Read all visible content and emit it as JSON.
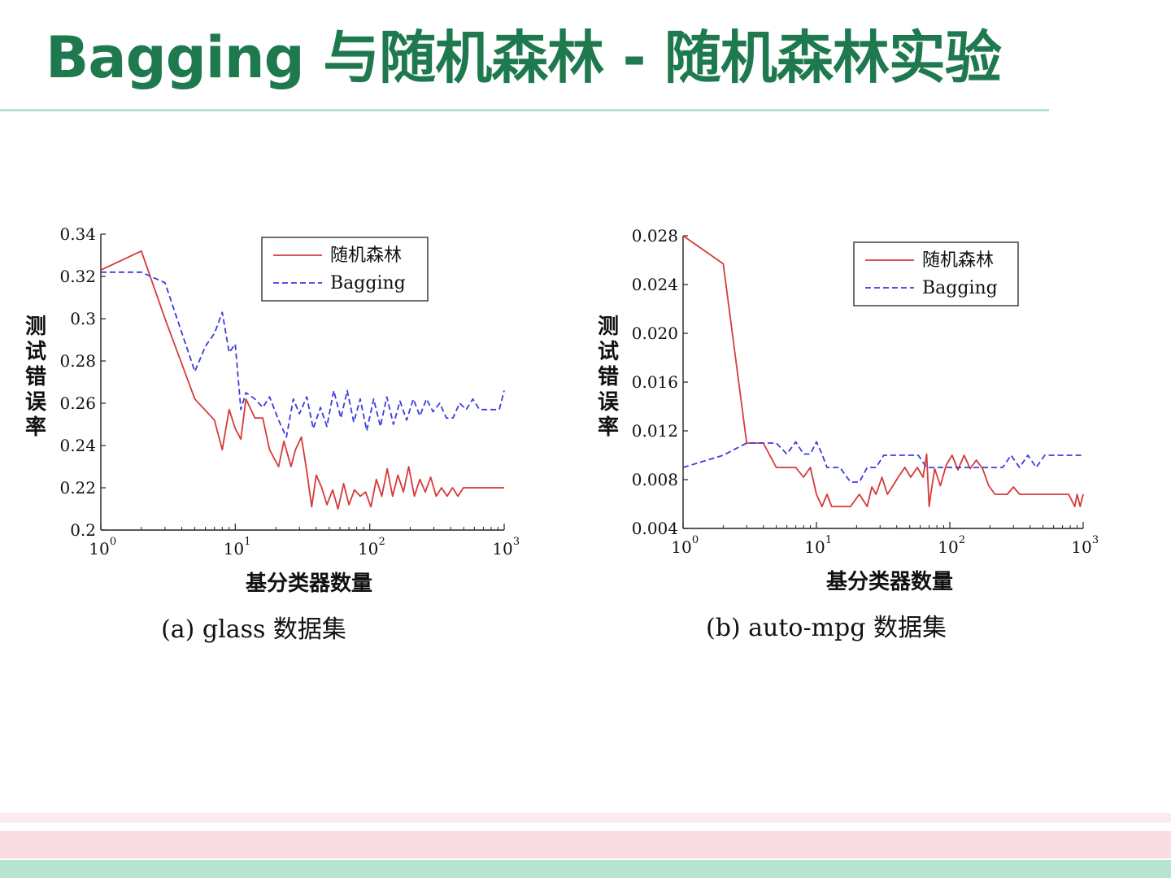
{
  "slide": {
    "title": "Bagging 与随机森林  -  随机森林实验"
  },
  "colors": {
    "title": "#1e7a4e",
    "random_forest_line": "#d63a3a",
    "bagging_line": "#3b3be0"
  },
  "chart_data": [
    {
      "type": "line",
      "caption": "(a) glass 数据集",
      "xlabel": "基分类器数量",
      "ylabel": "测试错误率",
      "xscale": "log",
      "xlim": [
        1,
        1000
      ],
      "ylim": [
        0.2,
        0.34
      ],
      "xticks": [
        1,
        10,
        100,
        1000
      ],
      "xtick_labels": [
        {
          "base": "10",
          "exp": "0"
        },
        {
          "base": "10",
          "exp": "1"
        },
        {
          "base": "10",
          "exp": "2"
        },
        {
          "base": "10",
          "exp": "3"
        }
      ],
      "yticks": [
        0.2,
        0.22,
        0.24,
        0.26,
        0.28,
        0.3,
        0.32,
        0.34
      ],
      "ytick_labels": [
        "0.2",
        "0.22",
        "0.24",
        "0.26",
        "0.28",
        "0.3",
        "0.32",
        "0.34"
      ],
      "legend_position": "top-right",
      "series": [
        {
          "name": "随机森林",
          "style": "solid",
          "color": "#d63a3a",
          "x": [
            1,
            2,
            3,
            5,
            7,
            8,
            9,
            10,
            11,
            12,
            14,
            16,
            18,
            21,
            23,
            26,
            28,
            31,
            34,
            37,
            40,
            44,
            48,
            53,
            58,
            64,
            70,
            77,
            85,
            93,
            102,
            112,
            123,
            135,
            148,
            162,
            178,
            195,
            215,
            236,
            259,
            284,
            312,
            342,
            376,
            413,
            453,
            497,
            546,
            600,
            1000
          ],
          "y": [
            0.323,
            0.332,
            0.3,
            0.262,
            0.252,
            0.238,
            0.257,
            0.248,
            0.243,
            0.262,
            0.253,
            0.253,
            0.238,
            0.23,
            0.242,
            0.23,
            0.238,
            0.244,
            0.228,
            0.211,
            0.226,
            0.22,
            0.212,
            0.219,
            0.21,
            0.222,
            0.212,
            0.219,
            0.216,
            0.218,
            0.211,
            0.224,
            0.216,
            0.229,
            0.216,
            0.226,
            0.218,
            0.23,
            0.216,
            0.224,
            0.218,
            0.225,
            0.216,
            0.22,
            0.216,
            0.22,
            0.216,
            0.22,
            0.22,
            0.22,
            0.22
          ]
        },
        {
          "name": "Bagging",
          "style": "dashed",
          "color": "#3b3be0",
          "x": [
            1,
            2,
            3,
            5,
            6,
            7,
            8,
            9,
            10,
            11,
            12,
            14,
            16,
            18,
            21,
            24,
            27,
            30,
            34,
            38,
            43,
            48,
            54,
            61,
            68,
            76,
            85,
            95,
            107,
            120,
            134,
            150,
            168,
            188,
            211,
            236,
            264,
            296,
            332,
            372,
            416,
            466,
            522,
            585,
            655,
            734,
            822,
            920,
            1000
          ],
          "y": [
            0.322,
            0.322,
            0.317,
            0.275,
            0.287,
            0.293,
            0.303,
            0.284,
            0.288,
            0.257,
            0.265,
            0.262,
            0.258,
            0.263,
            0.252,
            0.244,
            0.262,
            0.255,
            0.263,
            0.248,
            0.258,
            0.249,
            0.266,
            0.253,
            0.266,
            0.251,
            0.262,
            0.247,
            0.262,
            0.249,
            0.263,
            0.25,
            0.261,
            0.252,
            0.262,
            0.254,
            0.262,
            0.256,
            0.26,
            0.253,
            0.253,
            0.26,
            0.257,
            0.262,
            0.257,
            0.257,
            0.257,
            0.257,
            0.266
          ]
        }
      ]
    },
    {
      "type": "line",
      "caption": "(b) auto-mpg 数据集",
      "xlabel": "基分类器数量",
      "ylabel": "测试错误率",
      "xscale": "log",
      "xlim": [
        1,
        1000
      ],
      "ylim": [
        0.004,
        0.028
      ],
      "xticks": [
        1,
        10,
        100,
        1000
      ],
      "xtick_labels": [
        {
          "base": "10",
          "exp": "0"
        },
        {
          "base": "10",
          "exp": "1"
        },
        {
          "base": "10",
          "exp": "2"
        },
        {
          "base": "10",
          "exp": "3"
        }
      ],
      "yticks": [
        0.004,
        0.008,
        0.012,
        0.016,
        0.02,
        0.024,
        0.028
      ],
      "ytick_labels": [
        "0.004",
        "0.008",
        "0.012",
        "0.016",
        "0.020",
        "0.024",
        "0.028"
      ],
      "legend_position": "top-right",
      "series": [
        {
          "name": "随机森林",
          "style": "solid",
          "color": "#d63a3a",
          "x": [
            1,
            2,
            3,
            4,
            5,
            6,
            7,
            8,
            9,
            10,
            11,
            12,
            13,
            15,
            18,
            21,
            24,
            26,
            28,
            31,
            34,
            37,
            41,
            46,
            51,
            57,
            63,
            67,
            70,
            72,
            77,
            85,
            94,
            104,
            115,
            128,
            142,
            158,
            176,
            196,
            218,
            243,
            270,
            300,
            334,
            371,
            413,
            459,
            510,
            567,
            630,
            700,
            778,
            865,
            900,
            950,
            1000
          ],
          "y": [
            0.028,
            0.0257,
            0.011,
            0.011,
            0.009,
            0.009,
            0.009,
            0.0082,
            0.009,
            0.0068,
            0.0058,
            0.0068,
            0.0058,
            0.0058,
            0.0058,
            0.0068,
            0.0058,
            0.0074,
            0.0068,
            0.0082,
            0.0068,
            0.0074,
            0.0082,
            0.009,
            0.0082,
            0.009,
            0.0082,
            0.0101,
            0.0058,
            0.0068,
            0.0089,
            0.0075,
            0.0092,
            0.01,
            0.0088,
            0.01,
            0.0089,
            0.0096,
            0.0089,
            0.0075,
            0.0068,
            0.0068,
            0.0068,
            0.0074,
            0.0068,
            0.0068,
            0.0068,
            0.0068,
            0.0068,
            0.0068,
            0.0068,
            0.0068,
            0.0068,
            0.0058,
            0.0068,
            0.0058,
            0.0068
          ]
        },
        {
          "name": "Bagging",
          "style": "dashed",
          "color": "#3b3be0",
          "x": [
            1,
            2,
            3,
            4,
            5,
            6,
            7,
            8,
            9,
            10,
            11,
            12,
            15,
            18,
            21,
            24,
            28,
            32,
            37,
            43,
            50,
            58,
            67,
            78,
            90,
            104,
            120,
            139,
            161,
            186,
            215,
            249,
            288,
            333,
            385,
            445,
            515,
            596,
            690,
            800,
            1000
          ],
          "y": [
            0.009,
            0.01,
            0.011,
            0.011,
            0.011,
            0.0101,
            0.0111,
            0.0101,
            0.0101,
            0.0111,
            0.0101,
            0.009,
            0.009,
            0.0078,
            0.0078,
            0.009,
            0.009,
            0.01,
            0.01,
            0.01,
            0.01,
            0.01,
            0.009,
            0.009,
            0.009,
            0.009,
            0.009,
            0.009,
            0.009,
            0.009,
            0.009,
            0.009,
            0.01,
            0.009,
            0.01,
            0.009,
            0.01,
            0.01,
            0.01,
            0.01,
            0.01
          ]
        }
      ]
    }
  ]
}
